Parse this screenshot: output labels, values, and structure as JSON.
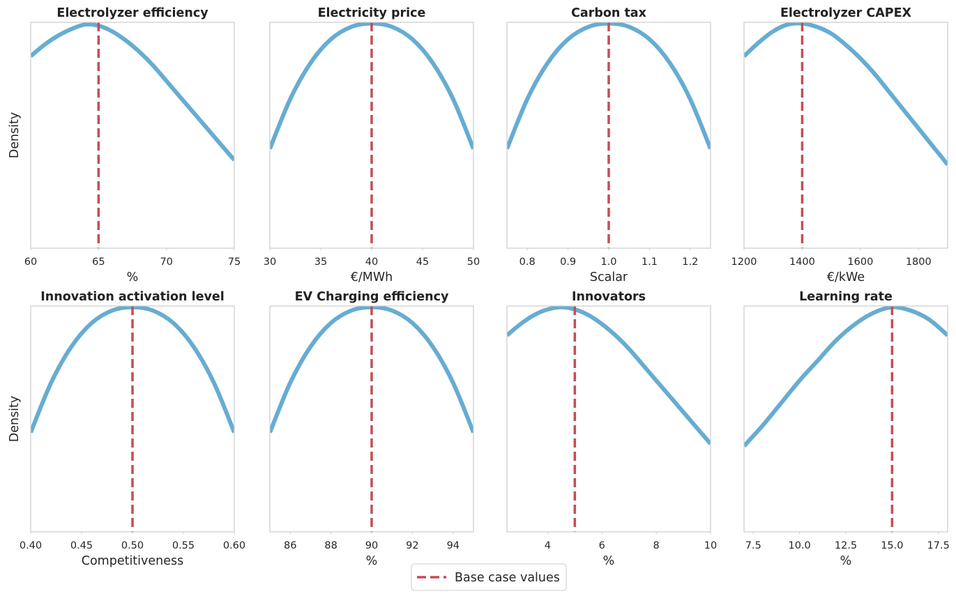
{
  "chart_data": [
    {
      "type": "line",
      "title": "Electrolyzer efficiency",
      "xlabel": "%",
      "ylabel": "Density",
      "xlim": [
        60,
        75
      ],
      "xticks": [
        60,
        65,
        70,
        75
      ],
      "xtick_labels": [
        "60",
        "65",
        "70",
        "75"
      ],
      "base_case": 65,
      "curve": {
        "x": [
          60,
          61,
          62,
          63,
          64,
          65,
          66,
          67,
          68,
          69,
          70,
          71,
          72,
          73,
          74,
          75
        ],
        "y": [
          0.85,
          0.9,
          0.94,
          0.97,
          0.99,
          0.985,
          0.96,
          0.92,
          0.87,
          0.81,
          0.74,
          0.67,
          0.6,
          0.53,
          0.46,
          0.39
        ]
      }
    },
    {
      "type": "line",
      "title": "Electricity price",
      "xlabel": "€/MWh",
      "ylabel": "",
      "xlim": [
        30,
        50
      ],
      "xticks": [
        30,
        35,
        40,
        45,
        50
      ],
      "xtick_labels": [
        "30",
        "35",
        "40",
        "45",
        "50"
      ],
      "base_case": 40,
      "curve": {
        "x": [
          30,
          32,
          34,
          36,
          38,
          40,
          42,
          44,
          46,
          48,
          50
        ],
        "y": [
          0.44,
          0.66,
          0.82,
          0.925,
          0.98,
          0.995,
          0.98,
          0.925,
          0.82,
          0.66,
          0.44
        ]
      }
    },
    {
      "type": "line",
      "title": "Carbon tax",
      "xlabel": "Scalar",
      "ylabel": "",
      "xlim": [
        0.75,
        1.25
      ],
      "xticks": [
        0.8,
        0.9,
        1.0,
        1.1,
        1.2
      ],
      "xtick_labels": [
        "0.8",
        "0.9",
        "1.0",
        "1.1",
        "1.2"
      ],
      "base_case": 1.0,
      "curve": {
        "x": [
          0.75,
          0.8,
          0.85,
          0.9,
          0.95,
          1.0,
          1.05,
          1.1,
          1.15,
          1.2,
          1.25
        ],
        "y": [
          0.44,
          0.66,
          0.82,
          0.925,
          0.98,
          0.995,
          0.98,
          0.925,
          0.82,
          0.66,
          0.44
        ]
      }
    },
    {
      "type": "line",
      "title": "Electrolyzer CAPEX",
      "xlabel": "€/kWe",
      "ylabel": "",
      "xlim": [
        1200,
        1900
      ],
      "xticks": [
        1200,
        1400,
        1600,
        1800
      ],
      "xtick_labels": [
        "1200",
        "1400",
        "1600",
        "1800"
      ],
      "base_case": 1400,
      "curve": {
        "x": [
          1200,
          1250,
          1300,
          1350,
          1400,
          1450,
          1500,
          1550,
          1600,
          1650,
          1700,
          1750,
          1800,
          1850,
          1900
        ],
        "y": [
          0.85,
          0.91,
          0.96,
          0.99,
          0.995,
          0.98,
          0.95,
          0.9,
          0.84,
          0.77,
          0.69,
          0.61,
          0.53,
          0.45,
          0.37
        ]
      }
    },
    {
      "type": "line",
      "title": "Innovation activation level",
      "xlabel": "Competitiveness",
      "ylabel": "Density",
      "xlim": [
        0.4,
        0.6
      ],
      "xticks": [
        0.4,
        0.45,
        0.5,
        0.55,
        0.6
      ],
      "xtick_labels": [
        "0.40",
        "0.45",
        "0.50",
        "0.55",
        "0.60"
      ],
      "base_case": 0.5,
      "curve": {
        "x": [
          0.4,
          0.42,
          0.44,
          0.46,
          0.48,
          0.5,
          0.52,
          0.54,
          0.56,
          0.58,
          0.6
        ],
        "y": [
          0.44,
          0.66,
          0.82,
          0.925,
          0.98,
          0.995,
          0.98,
          0.925,
          0.82,
          0.66,
          0.44
        ]
      }
    },
    {
      "type": "line",
      "title": "EV Charging efficiency",
      "xlabel": "%",
      "ylabel": "",
      "xlim": [
        85,
        95
      ],
      "xticks": [
        86,
        88,
        90,
        92,
        94
      ],
      "xtick_labels": [
        "86",
        "88",
        "90",
        "92",
        "94"
      ],
      "base_case": 90,
      "curve": {
        "x": [
          85,
          86,
          87,
          88,
          89,
          90,
          91,
          92,
          93,
          94,
          95
        ],
        "y": [
          0.44,
          0.66,
          0.82,
          0.925,
          0.98,
          0.995,
          0.98,
          0.925,
          0.82,
          0.66,
          0.44
        ]
      }
    },
    {
      "type": "line",
      "title": "Innovators",
      "xlabel": "%",
      "ylabel": "",
      "xlim": [
        2.5,
        10
      ],
      "xticks": [
        4,
        6,
        8,
        10
      ],
      "xtick_labels": [
        "4",
        "6",
        "8",
        "10"
      ],
      "base_case": 5,
      "curve": {
        "x": [
          2.5,
          3,
          3.5,
          4,
          4.5,
          5,
          5.5,
          6,
          6.5,
          7,
          7.5,
          8,
          8.5,
          9,
          9.5,
          10
        ],
        "y": [
          0.87,
          0.92,
          0.96,
          0.985,
          0.995,
          0.985,
          0.96,
          0.92,
          0.87,
          0.81,
          0.74,
          0.67,
          0.6,
          0.53,
          0.46,
          0.39
        ]
      }
    },
    {
      "type": "line",
      "title": "Learning rate",
      "xlabel": "%",
      "ylabel": "",
      "xlim": [
        7,
        18
      ],
      "xticks": [
        7.5,
        10,
        12.5,
        15,
        17.5
      ],
      "xtick_labels": [
        "7.5",
        "10.0",
        "12.5",
        "15.0",
        "17.5"
      ],
      "base_case": 15,
      "curve": {
        "x": [
          7,
          8,
          9,
          10,
          11,
          12,
          13,
          14,
          15,
          16,
          17,
          18
        ],
        "y": [
          0.38,
          0.47,
          0.57,
          0.67,
          0.76,
          0.85,
          0.92,
          0.97,
          0.995,
          0.98,
          0.94,
          0.87
        ]
      }
    }
  ],
  "legend": {
    "label": "Base case values",
    "position": "bottom-center"
  },
  "colors": {
    "curve": "#67acd2",
    "base_case": "#c44e52",
    "frame": "#cccccc"
  }
}
